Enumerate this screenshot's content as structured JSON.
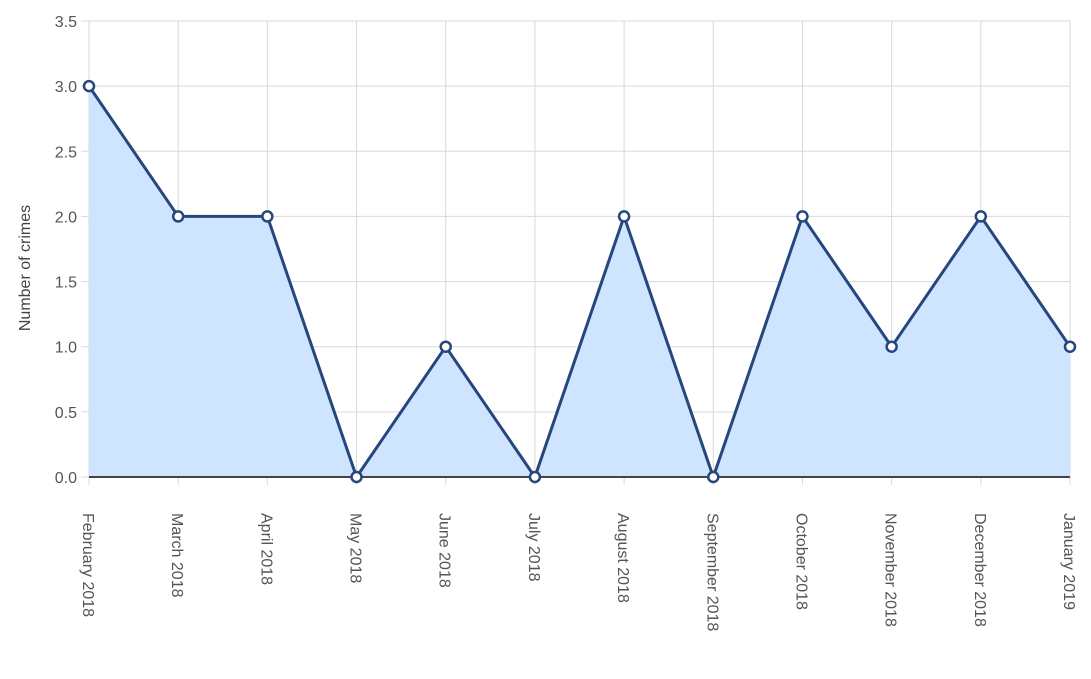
{
  "chart_data": {
    "type": "area",
    "title": "",
    "xlabel": "",
    "ylabel": "Number of crimes",
    "ylim": [
      0,
      3.5
    ],
    "yticks": [
      "0.0",
      "0.5",
      "1.0",
      "1.5",
      "2.0",
      "2.5",
      "3.0",
      "3.5"
    ],
    "categories": [
      "February 2018",
      "March 2018",
      "April 2018",
      "May 2018",
      "June 2018",
      "July 2018",
      "August 2018",
      "September 2018",
      "October 2018",
      "November 2018",
      "December 2018",
      "January 2019"
    ],
    "series": [
      {
        "values": [
          3,
          2,
          2,
          0,
          1,
          0,
          2,
          0,
          2,
          1,
          2,
          1
        ]
      }
    ],
    "grid": true,
    "legend": "none"
  },
  "colors": {
    "line": "#26477d",
    "fill": "#cfe5ff",
    "grid": "#d9d9d9",
    "zero_line": "#444444",
    "point_fill": "#ffffff"
  }
}
